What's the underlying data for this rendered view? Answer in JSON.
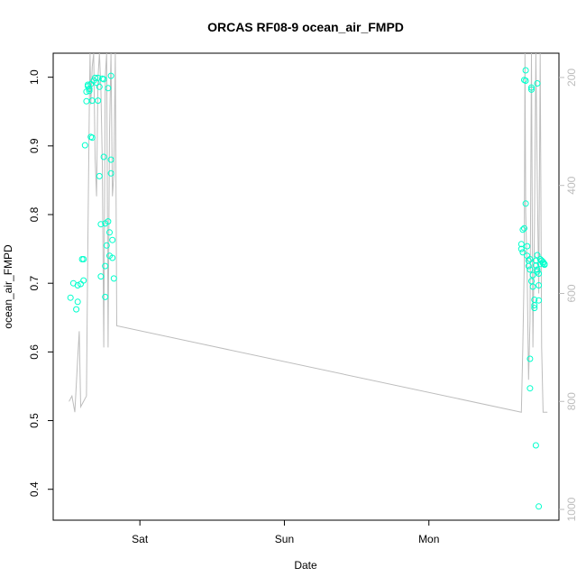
{
  "chart_data": {
    "type": "scatter",
    "title": "ORCAS RF08-9 ocean_air_FMPD",
    "xlabel": "Date",
    "ylabel": "ocean_air_FMPD",
    "x_ticks": [
      "Sat",
      "Sun",
      "Mon"
    ],
    "y_ticks": [
      "0.4",
      "0.5",
      "0.6",
      "0.7",
      "0.8",
      "0.9",
      "1.0"
    ],
    "y2_ticks": [
      "200",
      "400",
      "600",
      "800",
      "1000"
    ],
    "x_unit": "days since Fri 00:00",
    "xlim": [
      0.4,
      3.9
    ],
    "ylim": [
      0.355,
      1.035
    ],
    "y2lim": [
      1020,
      155
    ],
    "grid": false,
    "point_color": "#00ffcc",
    "line_color": "#bdbdbd",
    "series": [
      {
        "kind": "points",
        "axis": "left",
        "points": [
          [
            0.52,
            0.679
          ],
          [
            0.54,
            0.7
          ],
          [
            0.56,
            0.662
          ],
          [
            0.57,
            0.697
          ],
          [
            0.57,
            0.673
          ],
          [
            0.59,
            0.699
          ],
          [
            0.6,
            0.735
          ],
          [
            0.61,
            0.704
          ],
          [
            0.61,
            0.735
          ],
          [
            0.62,
            0.901
          ],
          [
            0.63,
            0.979
          ],
          [
            0.63,
            0.965
          ],
          [
            0.64,
            0.989
          ],
          [
            0.64,
            0.987
          ],
          [
            0.65,
            0.98
          ],
          [
            0.65,
            0.983
          ],
          [
            0.66,
            0.99
          ],
          [
            0.66,
            0.913
          ],
          [
            0.67,
            0.912
          ],
          [
            0.67,
            0.966
          ],
          [
            0.68,
            0.995
          ],
          [
            0.69,
            0.999
          ],
          [
            0.7,
            0.992
          ],
          [
            0.71,
            0.966
          ],
          [
            0.71,
            0.999
          ],
          [
            0.72,
            0.986
          ],
          [
            0.72,
            0.856
          ],
          [
            0.73,
            0.71
          ],
          [
            0.73,
            0.786
          ],
          [
            0.74,
            0.998
          ],
          [
            0.75,
            0.997
          ],
          [
            0.75,
            0.884
          ],
          [
            0.76,
            0.787
          ],
          [
            0.76,
            0.725
          ],
          [
            0.76,
            0.68
          ],
          [
            0.77,
            0.755
          ],
          [
            0.78,
            0.984
          ],
          [
            0.78,
            0.79
          ],
          [
            0.79,
            0.774
          ],
          [
            0.79,
            0.74
          ],
          [
            0.8,
            1.002
          ],
          [
            0.8,
            0.86
          ],
          [
            0.8,
            0.88
          ],
          [
            0.81,
            0.763
          ],
          [
            0.81,
            0.737
          ],
          [
            0.82,
            0.707
          ],
          [
            3.64,
            0.757
          ],
          [
            3.64,
            0.75
          ],
          [
            3.65,
            0.778
          ],
          [
            3.65,
            0.745
          ],
          [
            3.66,
            0.78
          ],
          [
            3.66,
            0.996
          ],
          [
            3.67,
            0.995
          ],
          [
            3.67,
            1.01
          ],
          [
            3.67,
            0.816
          ],
          [
            3.68,
            0.754
          ],
          [
            3.68,
            0.74
          ],
          [
            3.69,
            0.733
          ],
          [
            3.69,
            0.725
          ],
          [
            3.7,
            0.735
          ],
          [
            3.7,
            0.72
          ],
          [
            3.7,
            0.59
          ],
          [
            3.7,
            0.547
          ],
          [
            3.71,
            0.985
          ],
          [
            3.71,
            0.982
          ],
          [
            3.71,
            0.703
          ],
          [
            3.72,
            0.695
          ],
          [
            3.72,
            0.712
          ],
          [
            3.73,
            0.668
          ],
          [
            3.73,
            0.664
          ],
          [
            3.73,
            0.676
          ],
          [
            3.74,
            0.733
          ],
          [
            3.74,
            0.726
          ],
          [
            3.74,
            0.464
          ],
          [
            3.75,
            0.991
          ],
          [
            3.75,
            0.741
          ],
          [
            3.75,
            0.717
          ],
          [
            3.75,
            0.72
          ],
          [
            3.76,
            0.714
          ],
          [
            3.76,
            0.697
          ],
          [
            3.76,
            0.675
          ],
          [
            3.76,
            0.375
          ],
          [
            3.77,
            0.735
          ],
          [
            3.77,
            0.728
          ],
          [
            3.78,
            0.733
          ],
          [
            3.78,
            0.733
          ],
          [
            3.79,
            0.731
          ],
          [
            3.79,
            0.729
          ],
          [
            3.8,
            0.728
          ],
          [
            3.8,
            0.727
          ]
        ]
      },
      {
        "kind": "line",
        "axis": "right",
        "points": [
          [
            0.51,
            800
          ],
          [
            0.53,
            790
          ],
          [
            0.55,
            820
          ],
          [
            0.57,
            720
          ],
          [
            0.58,
            670
          ],
          [
            0.59,
            810
          ],
          [
            0.61,
            800
          ],
          [
            0.63,
            790
          ],
          [
            0.64,
            500
          ],
          [
            0.65,
            250
          ],
          [
            0.655,
            100
          ],
          [
            0.66,
            250
          ],
          [
            0.67,
            180
          ],
          [
            0.68,
            100
          ],
          [
            0.69,
            350
          ],
          [
            0.7,
            420
          ],
          [
            0.71,
            200
          ],
          [
            0.72,
            100
          ],
          [
            0.73,
            220
          ],
          [
            0.74,
            360
          ],
          [
            0.75,
            700
          ],
          [
            0.76,
            200
          ],
          [
            0.77,
            100
          ],
          [
            0.78,
            700
          ],
          [
            0.79,
            300
          ],
          [
            0.8,
            100
          ],
          [
            0.81,
            420
          ],
          [
            0.82,
            380
          ],
          [
            0.83,
            100
          ],
          [
            0.84,
            660
          ],
          [
            3.64,
            820
          ],
          [
            3.65,
            700
          ],
          [
            3.66,
            550
          ],
          [
            3.665,
            100
          ],
          [
            3.67,
            450
          ],
          [
            3.68,
            560
          ],
          [
            3.69,
            760
          ],
          [
            3.7,
            650
          ],
          [
            3.71,
            100
          ],
          [
            3.72,
            700
          ],
          [
            3.73,
            480
          ],
          [
            3.74,
            100
          ],
          [
            3.75,
            400
          ],
          [
            3.76,
            600
          ],
          [
            3.77,
            100
          ],
          [
            3.78,
            700
          ],
          [
            3.79,
            820
          ],
          [
            3.82,
            820
          ]
        ]
      }
    ]
  }
}
